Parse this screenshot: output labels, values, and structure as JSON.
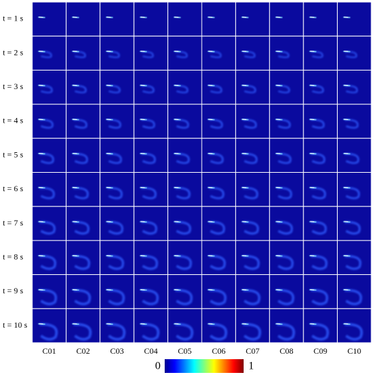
{
  "rows": [
    "t = 1 s",
    "t = 2 s",
    "t = 3 s",
    "t = 4 s",
    "t = 5 s",
    "t = 6 s",
    "t = 7 s",
    "t = 8 s",
    "t = 9 s",
    "t = 10 s"
  ],
  "columns": [
    "C01",
    "C02",
    "C03",
    "C04",
    "C05",
    "C06",
    "C07",
    "C08",
    "C09",
    "C10"
  ],
  "colorbar": {
    "ticks": [
      0,
      1
    ]
  }
}
